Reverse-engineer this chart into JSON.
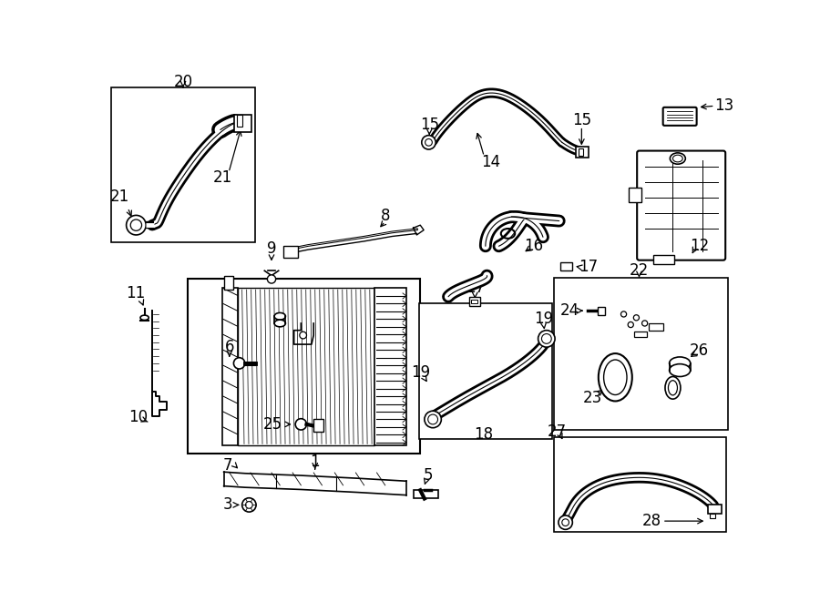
{
  "bg_color": "#ffffff",
  "line_color": "#000000",
  "fs": 12,
  "lw": 1.2
}
